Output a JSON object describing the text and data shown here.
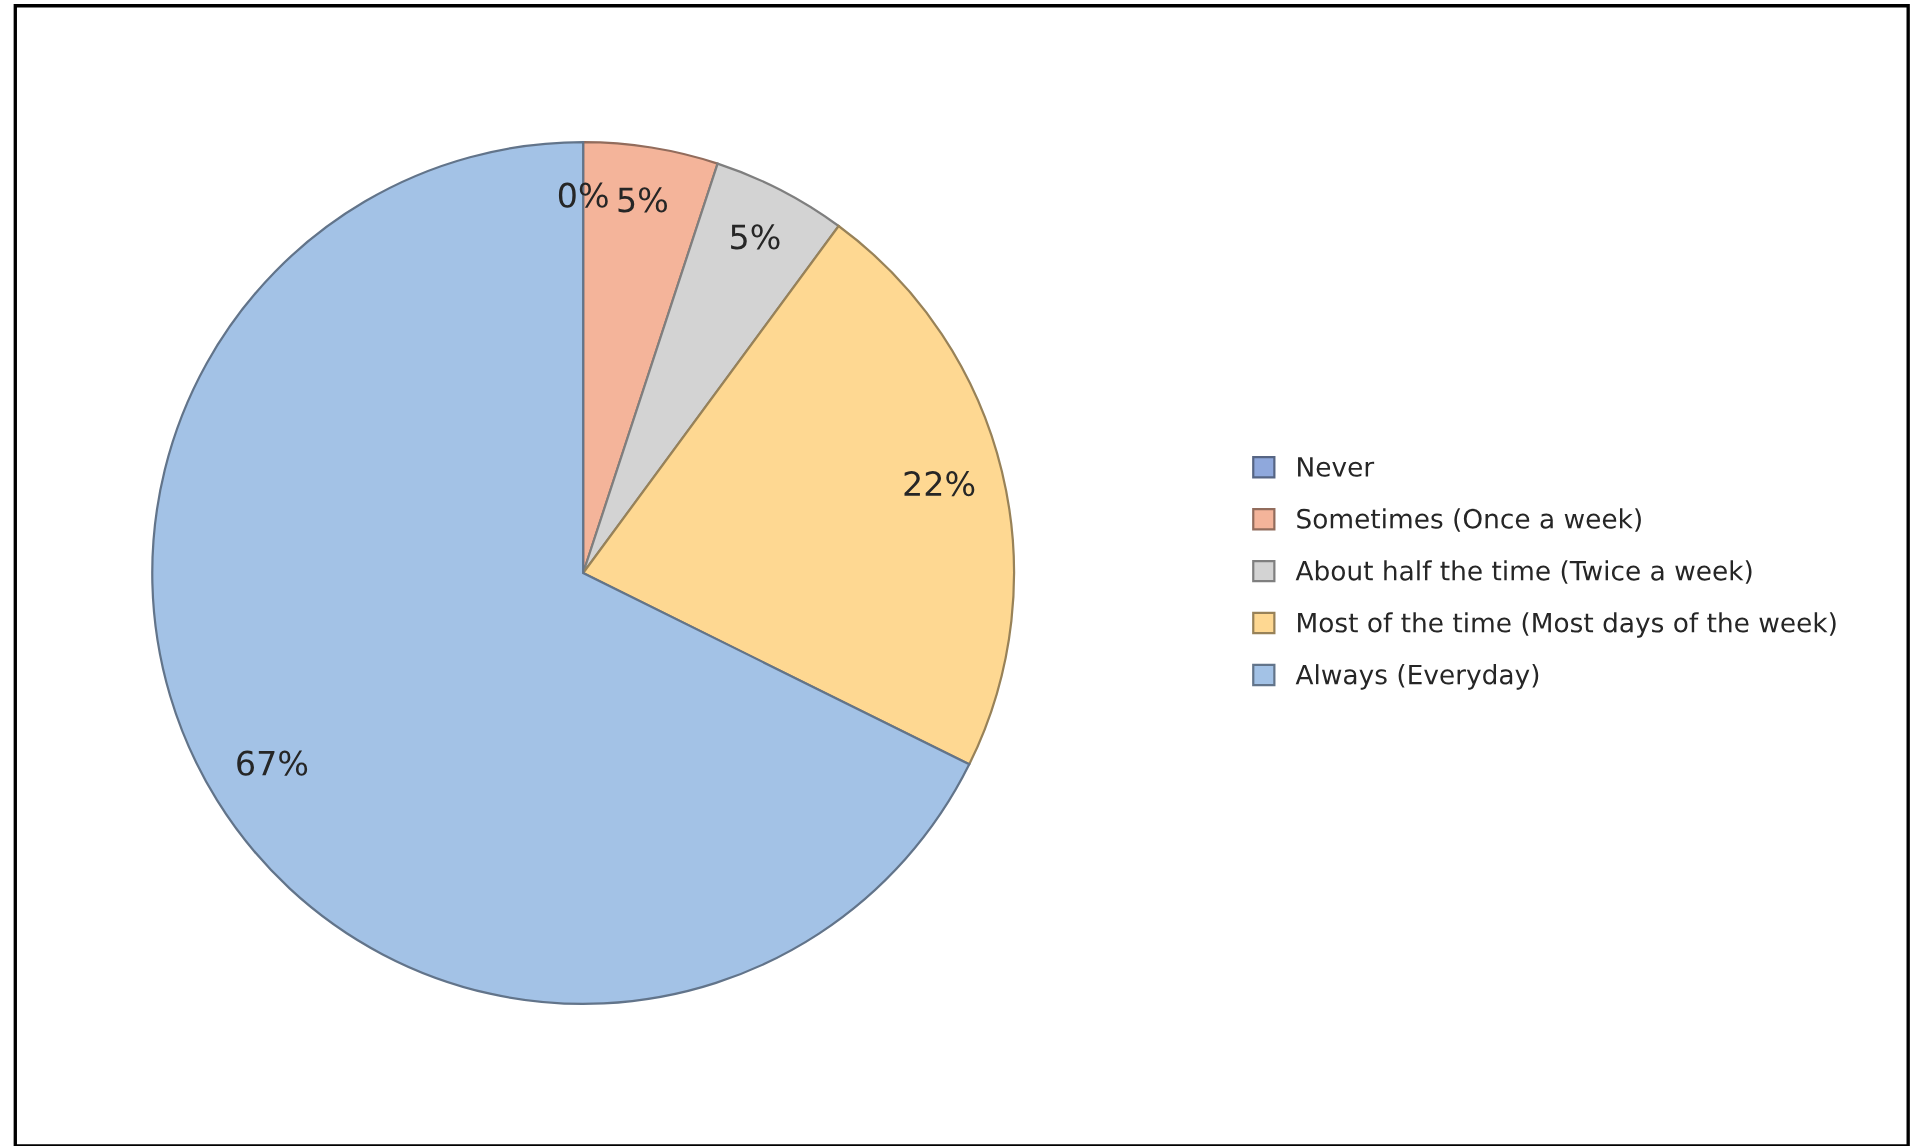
{
  "chart_data": {
    "type": "pie",
    "categories": [
      "Never",
      "Sometimes (Once a week)",
      "About half the time (Twice a week)",
      "Most of the time (Most days of the week)",
      "Always (Everyday)"
    ],
    "values": [
      0,
      5,
      5,
      22,
      67
    ],
    "colors": [
      "#8fa8dc",
      "#f4b49a",
      "#d3d3d3",
      "#fed892",
      "#a3c2e6"
    ],
    "value_labels": [
      "0%",
      "5%",
      "5%",
      "22%",
      "67%"
    ],
    "legend": "right"
  }
}
